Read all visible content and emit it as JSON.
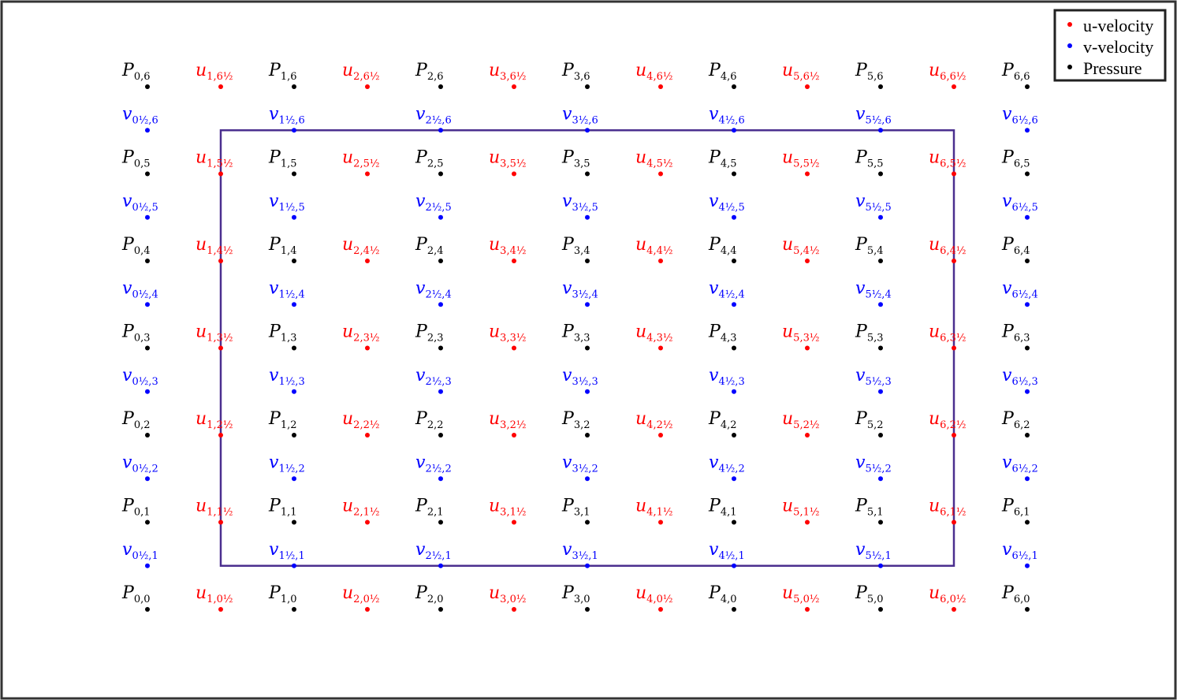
{
  "colors": {
    "pressure": "#000000",
    "u": "#ff0000",
    "v": "#0000ff",
    "domain": "#4b2f8f",
    "frame": "#333333"
  },
  "legend": [
    {
      "label": "u-velocity",
      "color": "#ff0000"
    },
    {
      "label": "v-velocity",
      "color": "#0000ff"
    },
    {
      "label": "Pressure",
      "color": "#000000"
    }
  ],
  "grid": {
    "i_range": [
      0,
      6
    ],
    "j_range": [
      0,
      6
    ],
    "pressure_symbol": "P",
    "u_symbol": "u",
    "v_symbol": "v",
    "half": "½"
  },
  "domain_box": {
    "x_from": 0.5,
    "x_to": 5.5,
    "y_from": 0.5,
    "y_to": 5.5
  }
}
